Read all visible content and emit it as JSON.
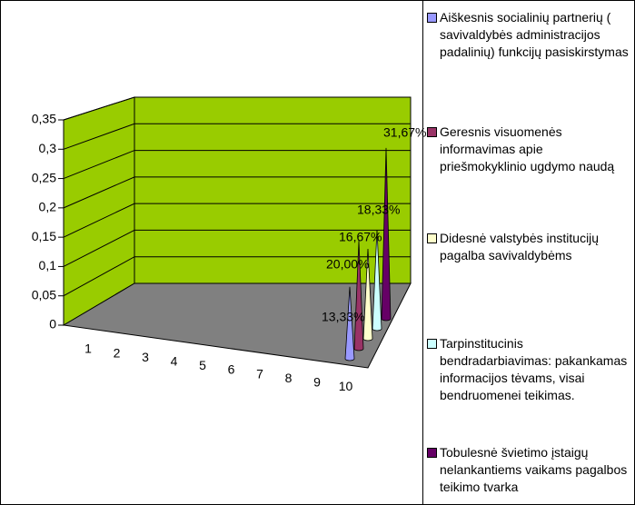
{
  "chart_data": {
    "type": "bar3d-cone",
    "categories": [
      "1",
      "2",
      "3",
      "4",
      "5",
      "6",
      "7",
      "8",
      "9",
      "10"
    ],
    "series": [
      {
        "name": "Aiškesnis socialinių partnerių ( savivaldybės administracijos padalinių) funkcijų pasiskirstymas",
        "color": "#9999ff",
        "values": [
          null,
          null,
          null,
          null,
          null,
          null,
          null,
          null,
          null,
          0.1333
        ],
        "value_labels": [
          null,
          null,
          null,
          null,
          null,
          null,
          null,
          null,
          null,
          "13,33%"
        ]
      },
      {
        "name": "Geresnis visuomenės informavimas apie priešmokyklinio ugdymo naudą",
        "color": "#993366",
        "values": [
          null,
          null,
          null,
          null,
          null,
          null,
          null,
          null,
          null,
          0.2
        ],
        "value_labels": [
          null,
          null,
          null,
          null,
          null,
          null,
          null,
          null,
          null,
          "20,00%"
        ]
      },
      {
        "name": "Didesnė valstybės institucijų pagalba savivaldybėms",
        "color": "#ffffcc",
        "values": [
          null,
          null,
          null,
          null,
          null,
          null,
          null,
          null,
          null,
          0.1667
        ],
        "value_labels": [
          null,
          null,
          null,
          null,
          null,
          null,
          null,
          null,
          null,
          "16,67%"
        ]
      },
      {
        "name": "Tarpinstitucinis bendradarbiavimas: pakankamas informacijos tėvams, visai bendruomenei teikimas.",
        "color": "#ccffff",
        "values": [
          null,
          null,
          null,
          null,
          null,
          null,
          null,
          null,
          null,
          0.1833
        ],
        "value_labels": [
          null,
          null,
          null,
          null,
          null,
          null,
          null,
          null,
          null,
          "18,33%"
        ]
      },
      {
        "name": "Tobulesnė švietimo įstaigų nelankantiems vaikams pagalbos teikimo tvarka",
        "color": "#660066",
        "values": [
          null,
          null,
          null,
          null,
          null,
          null,
          null,
          null,
          null,
          0.3167
        ],
        "value_labels": [
          null,
          null,
          null,
          null,
          null,
          null,
          null,
          null,
          null,
          "31,67%"
        ]
      }
    ],
    "ylim": [
      0,
      0.35
    ],
    "yticks": [
      0,
      {
        "value": 0.05,
        "label": "0,05"
      },
      {
        "value": 0.1,
        "label": "0,1"
      },
      {
        "value": 0.15,
        "label": "0,15"
      },
      {
        "value": 0.2,
        "label": "0,2"
      },
      {
        "value": 0.25,
        "label": "0,25"
      },
      {
        "value": 0.3,
        "label": "0,3"
      },
      {
        "value": 0.35,
        "label": "0,35"
      }
    ],
    "grid": true,
    "wall_color": "#99cc00",
    "floor_color": "#808080",
    "legend": "right"
  }
}
